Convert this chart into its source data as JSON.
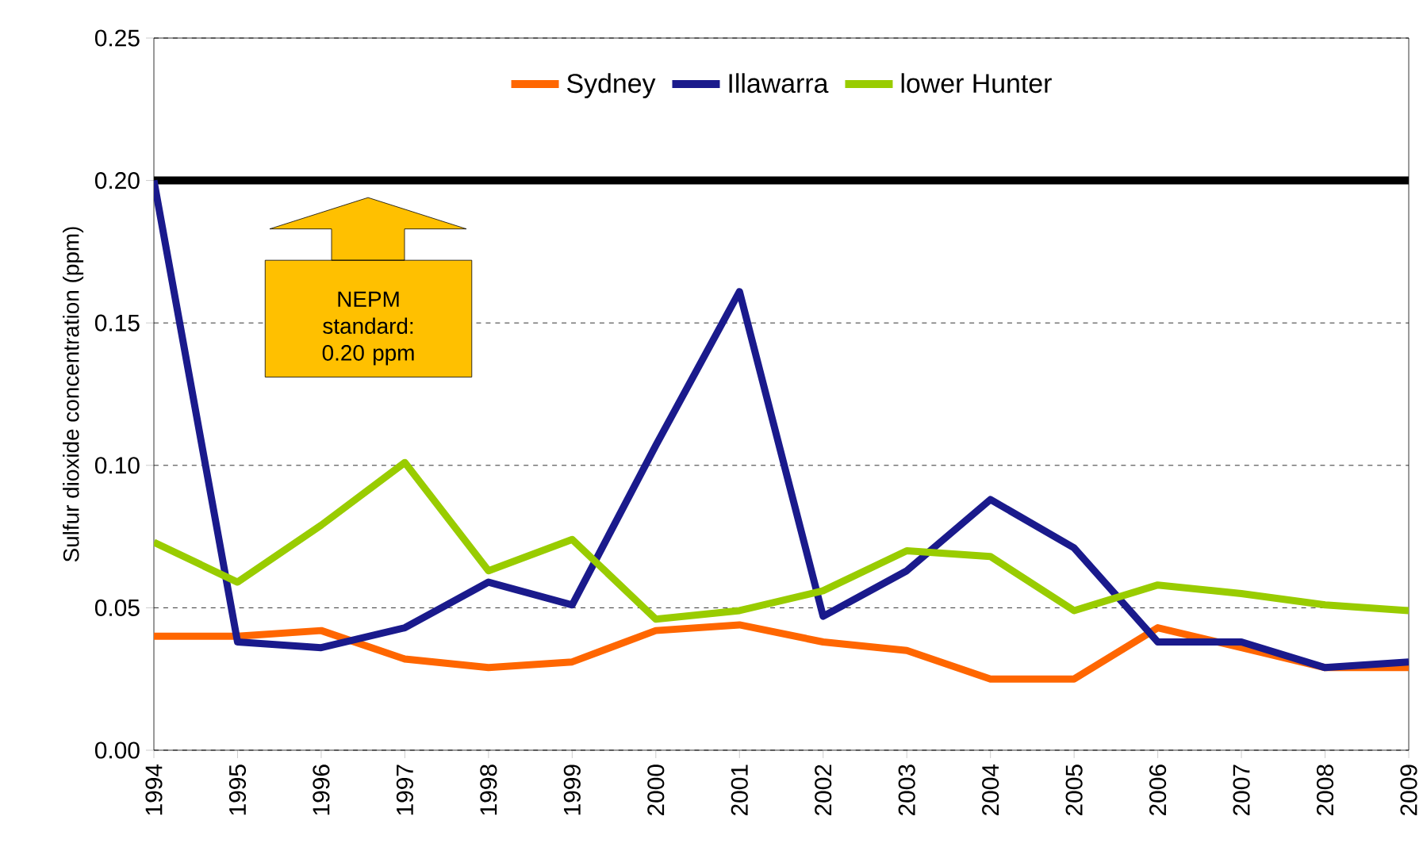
{
  "chart_data": {
    "type": "line",
    "ylabel": "Sulfur dioxide concentration (ppm)",
    "categories": [
      "1994",
      "1995",
      "1996",
      "1997",
      "1998",
      "1999",
      "2000",
      "2001",
      "2002",
      "2003",
      "2004",
      "2005",
      "2006",
      "2007",
      "2008",
      "2009"
    ],
    "series": [
      {
        "name": "Sydney",
        "color": "#ff6600",
        "values": [
          0.04,
          0.04,
          0.042,
          0.032,
          0.029,
          0.031,
          0.042,
          0.044,
          0.038,
          0.035,
          0.025,
          0.025,
          0.043,
          0.036,
          0.029,
          0.029
        ]
      },
      {
        "name": "Illawarra",
        "color": "#1a1a8c",
        "values": [
          0.2,
          0.038,
          0.036,
          0.043,
          0.059,
          0.051,
          0.107,
          0.161,
          0.047,
          0.063,
          0.088,
          0.071,
          0.038,
          0.038,
          0.029,
          0.031
        ]
      },
      {
        "name": "lower Hunter",
        "color": "#99cc00",
        "values": [
          0.073,
          0.059,
          0.079,
          0.101,
          0.063,
          0.074,
          0.046,
          0.049,
          0.056,
          0.07,
          0.068,
          0.049,
          0.058,
          0.055,
          0.051,
          0.049
        ]
      }
    ],
    "ylim": [
      0,
      0.25
    ],
    "yticks": [
      {
        "value": 0,
        "label": "0.00"
      },
      {
        "value": 0.05,
        "label": "0.05"
      },
      {
        "value": 0.1,
        "label": "0.10"
      },
      {
        "value": 0.15,
        "label": "0.15"
      },
      {
        "value": 0.2,
        "label": "0.20"
      },
      {
        "value": 0.25,
        "label": "0.25"
      }
    ],
    "ref_lines": [
      {
        "axis": "y",
        "value": 0.2,
        "color": "#000000"
      }
    ],
    "annotations": [
      "NEPM standard: 0.20 ppm"
    ],
    "grid": "y",
    "legend": "top"
  }
}
